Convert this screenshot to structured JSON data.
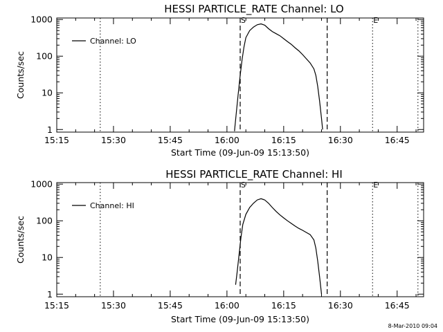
{
  "footer_stamp": "8-Mar-2010 09:04",
  "chart_data": [
    {
      "type": "line",
      "title": "HESSI PARTICLE_RATE Channel: LO",
      "xlabel": "Start Time (09-Jun-09 15:13:50)",
      "ylabel": "Counts/sec",
      "xlim_minutes": [
        15.0,
        112.0
      ],
      "ylim": [
        0.85,
        1100
      ],
      "yscale": "log",
      "x_ticks": [
        {
          "label": "15:15",
          "t": 15
        },
        {
          "label": "15:30",
          "t": 30
        },
        {
          "label": "15:45",
          "t": 45
        },
        {
          "label": "16:00",
          "t": 60
        },
        {
          "label": "16:15",
          "t": 75
        },
        {
          "label": "16:30",
          "t": 90
        },
        {
          "label": "16:45",
          "t": 105
        }
      ],
      "y_ticks": [
        {
          "label": "1",
          "v": 1
        },
        {
          "label": "10",
          "v": 10
        },
        {
          "label": "100",
          "v": 100
        },
        {
          "label": "1000",
          "v": 1000
        }
      ],
      "legend": {
        "label": "Channel: LO",
        "position": "top-left"
      },
      "markers": [
        {
          "label": "S",
          "t": 63.5,
          "style": "dashed"
        },
        {
          "label": "",
          "t": 86.5,
          "style": "dashed"
        },
        {
          "label": "",
          "t": 26.5,
          "style": "dotted"
        },
        {
          "label": "E",
          "t": 98.5,
          "style": "dotted"
        },
        {
          "label": "",
          "t": 110.5,
          "style": "dotted"
        }
      ],
      "series": [
        {
          "points": [
            [
              62.0,
              0.9
            ],
            [
              62.1,
              1.2
            ],
            [
              62.5,
              3
            ],
            [
              63.0,
              10
            ],
            [
              63.5,
              30
            ],
            [
              64.0,
              80
            ],
            [
              64.5,
              180
            ],
            [
              65.0,
              320
            ],
            [
              66.0,
              500
            ],
            [
              67.0,
              620
            ],
            [
              68.0,
              720
            ],
            [
              69.0,
              760
            ],
            [
              70.0,
              700
            ],
            [
              71.0,
              560
            ],
            [
              72.0,
              470
            ],
            [
              73.0,
              410
            ],
            [
              74.0,
              360
            ],
            [
              75.0,
              300
            ],
            [
              76.0,
              250
            ],
            [
              77.0,
              210
            ],
            [
              78.0,
              170
            ],
            [
              79.0,
              140
            ],
            [
              80.0,
              110
            ],
            [
              81.0,
              85
            ],
            [
              82.0,
              65
            ],
            [
              83.0,
              45
            ],
            [
              83.5,
              30
            ],
            [
              84.0,
              15
            ],
            [
              84.5,
              6
            ],
            [
              85.0,
              2
            ],
            [
              85.3,
              1
            ]
          ]
        }
      ]
    },
    {
      "type": "line",
      "title": "HESSI PARTICLE_RATE Channel: HI",
      "xlabel": "Start Time (09-Jun-09 15:13:50)",
      "ylabel": "Counts/sec",
      "xlim_minutes": [
        15.0,
        112.0
      ],
      "ylim": [
        0.85,
        1100
      ],
      "yscale": "log",
      "x_ticks": [
        {
          "label": "15:15",
          "t": 15
        },
        {
          "label": "15:30",
          "t": 30
        },
        {
          "label": "15:45",
          "t": 45
        },
        {
          "label": "16:00",
          "t": 60
        },
        {
          "label": "16:15",
          "t": 75
        },
        {
          "label": "16:30",
          "t": 90
        },
        {
          "label": "16:45",
          "t": 105
        }
      ],
      "y_ticks": [
        {
          "label": "1",
          "v": 1
        },
        {
          "label": "10",
          "v": 10
        },
        {
          "label": "100",
          "v": 100
        },
        {
          "label": "1000",
          "v": 1000
        }
      ],
      "legend": {
        "label": "Channel: HI",
        "position": "top-left"
      },
      "markers": [
        {
          "label": "S",
          "t": 63.5,
          "style": "dashed"
        },
        {
          "label": "",
          "t": 86.5,
          "style": "dashed"
        },
        {
          "label": "",
          "t": 26.5,
          "style": "dotted"
        },
        {
          "label": "E",
          "t": 98.5,
          "style": "dotted"
        },
        {
          "label": "",
          "t": 110.5,
          "style": "dotted"
        }
      ],
      "series": [
        {
          "points": [
            [
              62.3,
              1.8
            ],
            [
              62.7,
              4
            ],
            [
              63.2,
              12
            ],
            [
              63.7,
              35
            ],
            [
              64.2,
              80
            ],
            [
              65.0,
              150
            ],
            [
              66.0,
              230
            ],
            [
              67.0,
              300
            ],
            [
              68.0,
              370
            ],
            [
              69.0,
              400
            ],
            [
              70.0,
              370
            ],
            [
              71.0,
              300
            ],
            [
              72.0,
              230
            ],
            [
              73.0,
              180
            ],
            [
              74.0,
              145
            ],
            [
              75.0,
              120
            ],
            [
              76.0,
              100
            ],
            [
              77.0,
              85
            ],
            [
              78.0,
              72
            ],
            [
              79.0,
              62
            ],
            [
              80.0,
              55
            ],
            [
              81.0,
              48
            ],
            [
              82.0,
              42
            ],
            [
              83.0,
              30
            ],
            [
              83.5,
              18
            ],
            [
              84.0,
              8
            ],
            [
              84.5,
              3
            ],
            [
              85.0,
              1
            ]
          ]
        }
      ]
    }
  ]
}
